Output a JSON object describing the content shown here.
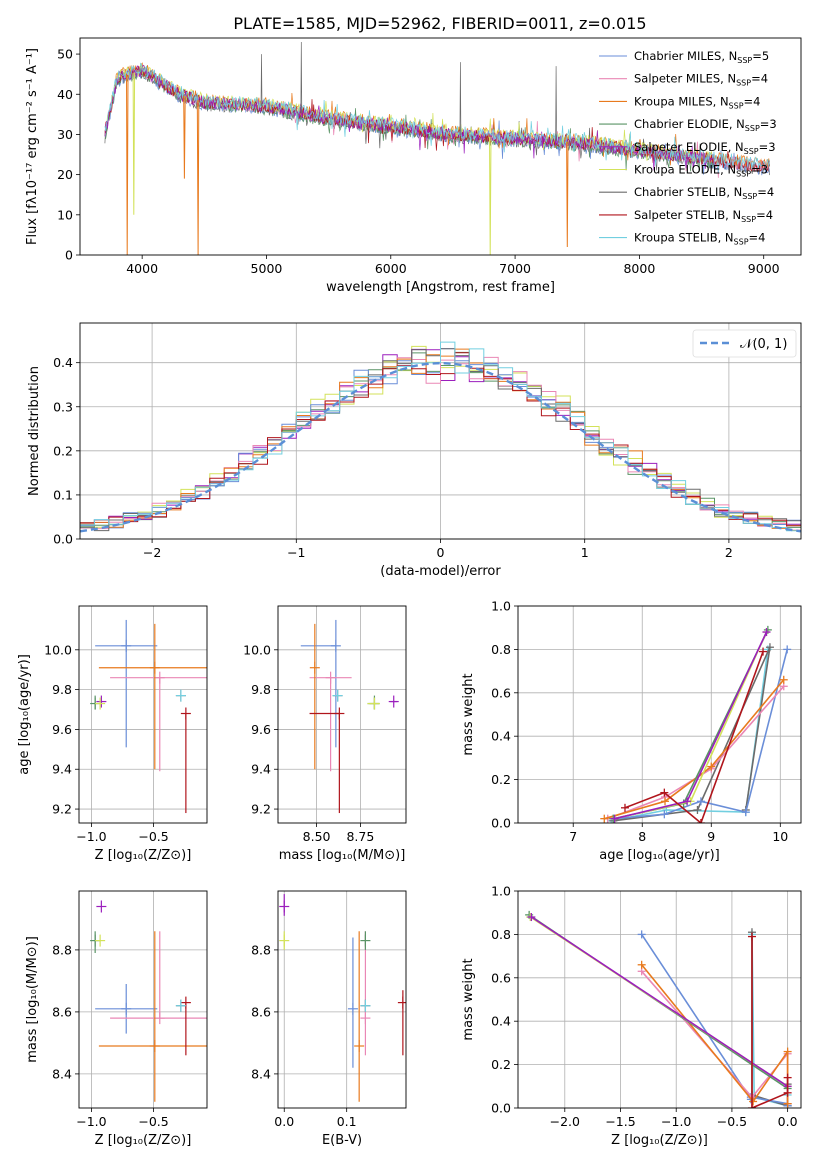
{
  "figure": {
    "title": "PLATE=1585, MJD=52962, FIBERID=0011, z=0.015"
  },
  "colors": {
    "chabrier_miles": "#6a8ed8",
    "salpeter_miles": "#ea87b5",
    "kroupa_miles": "#e87a1e",
    "chabrier_elodie": "#5a9466",
    "salpeter_elodie": "#9b1fbd",
    "kroupa_elodie": "#d3e25a",
    "chabrier_stelib": "#6b6b6b",
    "salpeter_stelib": "#b0151c",
    "kroupa_stelib": "#72cfe0"
  },
  "chart_data": [
    {
      "id": "spectrum",
      "type": "line",
      "xlabel": "wavelength [Angstrom, rest frame]",
      "ylabel": "Flux [fλ10⁻¹⁷ erg cm⁻² s⁻¹ A⁻¹]",
      "xlim": [
        3500,
        9300
      ],
      "ylim": [
        0,
        54
      ],
      "xticks": [
        "4000",
        "5000",
        "6000",
        "7000",
        "8000",
        "9000"
      ],
      "yticks": [
        "0",
        "10",
        "20",
        "30",
        "40",
        "50"
      ],
      "legend_placement": "upper-right",
      "continuum": {
        "x": [
          3700,
          3800,
          4000,
          4300,
          4500,
          5000,
          5500,
          6000,
          6500,
          7000,
          7500,
          8000,
          8500,
          9000
        ],
        "y": [
          30,
          44,
          46,
          40,
          38,
          37,
          34,
          32,
          30,
          29,
          28,
          26,
          24,
          22
        ]
      },
      "features": {
        "dips": [
          [
            3880,
            0
          ],
          [
            3933,
            10
          ],
          [
            4340,
            19
          ],
          [
            4450,
            0
          ],
          [
            6800,
            0
          ],
          [
            7420,
            2
          ]
        ],
        "spikes": [
          [
            4960,
            50
          ],
          [
            5280,
            53
          ],
          [
            6560,
            48
          ],
          [
            7330,
            47
          ]
        ]
      },
      "series": [
        {
          "name": "Chabrier MILES, N_SSP=5",
          "label": "Chabrier MILES, N",
          "sub": "SSP",
          "suffix": "=5",
          "color_key": "chabrier_miles"
        },
        {
          "name": "Salpeter MILES, N_SSP=4",
          "label": "Salpeter MILES, N",
          "sub": "SSP",
          "suffix": "=4",
          "color_key": "salpeter_miles"
        },
        {
          "name": "Kroupa MILES, N_SSP=4",
          "label": "Kroupa MILES, N",
          "sub": "SSP",
          "suffix": "=4",
          "color_key": "kroupa_miles"
        },
        {
          "name": "Chabrier ELODIE, N_SSP=3",
          "label": "Chabrier ELODIE, N",
          "sub": "SSP",
          "suffix": "=3",
          "color_key": "chabrier_elodie"
        },
        {
          "name": "Salpeter ELODIE, N_SSP=3",
          "label": "Salpeter ELODIE, N",
          "sub": "SSP",
          "suffix": "=3",
          "color_key": "salpeter_elodie"
        },
        {
          "name": "Kroupa ELODIE, N_SSP=3",
          "label": "Kroupa ELODIE, N",
          "sub": "SSP",
          "suffix": "=3",
          "color_key": "kroupa_elodie"
        },
        {
          "name": "Chabrier STELIB, N_SSP=4",
          "label": "Chabrier STELIB, N",
          "sub": "SSP",
          "suffix": "=4",
          "color_key": "chabrier_stelib"
        },
        {
          "name": "Salpeter STELIB, N_SSP=4",
          "label": "Salpeter STELIB, N",
          "sub": "SSP",
          "suffix": "=4",
          "color_key": "salpeter_stelib"
        },
        {
          "name": "Kroupa STELIB, N_SSP=4",
          "label": "Kroupa STELIB, N",
          "sub": "SSP",
          "suffix": "=4",
          "color_key": "kroupa_stelib"
        }
      ]
    },
    {
      "id": "residuals",
      "type": "line",
      "xlabel": "(data-model)/error",
      "ylabel": "Normed distribution",
      "xlim": [
        -2.5,
        2.5
      ],
      "ylim": [
        0,
        0.49
      ],
      "xticks": [
        "−2",
        "−1",
        "0",
        "1",
        "2"
      ],
      "yticks": [
        "0.0",
        "0.1",
        "0.2",
        "0.3",
        "0.4"
      ],
      "grid": true,
      "legend_placement": "upper-right",
      "reference_label": "𝒩(0, 1)",
      "reference_color": "#5b8fd6",
      "bin_width": 0.1
    },
    {
      "id": "age_vs_Z",
      "type": "scatter",
      "xlabel": "Z [log₁₀(Z/Z⊙)]",
      "ylabel": "age  [log₁₀(age/yr)]",
      "xlim": [
        -1.1,
        -0.07
      ],
      "ylim": [
        9.13,
        10.22
      ],
      "xticks": [
        "−1.0",
        "−0.5"
      ],
      "yticks": [
        "9.2",
        "9.4",
        "9.6",
        "9.8",
        "10.0"
      ],
      "grid": true
    },
    {
      "id": "age_vs_mass",
      "type": "scatter",
      "xlabel": "mass [log₁₀(M/M⊙)]",
      "xlim": [
        8.28,
        9.01
      ],
      "ylim": [
        9.13,
        10.22
      ],
      "xticks": [
        "8.50",
        "8.75"
      ],
      "yticks": [
        "9.2",
        "9.4",
        "9.6",
        "9.8",
        "10.0"
      ],
      "grid": true
    },
    {
      "id": "mass_weight_vs_age",
      "type": "line",
      "xlabel": "age  [log₁₀(age/yr)]",
      "ylabel": "mass weight",
      "xlim": [
        6.2,
        10.3
      ],
      "ylim": [
        0,
        1
      ],
      "xticks": [
        "7",
        "8",
        "9",
        "10"
      ],
      "yticks": [
        "0.0",
        "0.2",
        "0.4",
        "0.6",
        "0.8",
        "1.0"
      ],
      "grid": true
    },
    {
      "id": "mass_vs_Z",
      "type": "scatter",
      "xlabel": "Z [log₁₀(Z/Z⊙)]",
      "ylabel": "mass [log₁₀(M/M⊙)]",
      "xlim": [
        -1.1,
        -0.07
      ],
      "ylim": [
        8.29,
        8.99
      ],
      "xticks": [
        "−1.0",
        "−0.5"
      ],
      "yticks": [
        "8.4",
        "8.6",
        "8.8"
      ],
      "grid": true
    },
    {
      "id": "mass_vs_ebv",
      "type": "scatter",
      "xlabel": "E(B-V)",
      "xlim": [
        -0.01,
        0.195
      ],
      "ylim": [
        8.29,
        8.99
      ],
      "xticks": [
        "0.0",
        "0.1"
      ],
      "yticks": [
        "8.4",
        "8.6",
        "8.8"
      ],
      "grid": true
    },
    {
      "id": "mass_weight_vs_Z",
      "type": "line",
      "xlabel": "Z [log₁₀(Z/Z⊙)]",
      "ylabel": "mass weight",
      "xlim": [
        -2.42,
        0.12
      ],
      "ylim": [
        0,
        1
      ],
      "xticks": [
        "−2.0",
        "−1.5",
        "−1.0",
        "−0.5",
        "0.0"
      ],
      "yticks": [
        "0.0",
        "0.2",
        "0.4",
        "0.6",
        "0.8",
        "1.0"
      ],
      "grid": true
    }
  ],
  "models": [
    {
      "key": "chabrier_miles",
      "Z": -0.72,
      "Zerr": 0.25,
      "age": 10.02,
      "ageErr": [
        0.51,
        0.13
      ],
      "mass": 8.61,
      "massErr": [
        0.2,
        0.0
      ],
      "massZerr": [
        0.08,
        0.08
      ],
      "ebv": 0.11,
      "ebvErr": 0.0,
      "ebvMassErr": [
        0.19,
        0.23
      ],
      "wa": [
        [
          7.58,
          0.02
        ],
        [
          8.32,
          0.04
        ],
        [
          8.85,
          0.1
        ],
        [
          9.5,
          0.05
        ],
        [
          10.1,
          0.8
        ]
      ],
      "wz": [
        [
          -1.31,
          0.8
        ],
        [
          -0.33,
          0.04
        ],
        [
          -0.33,
          0.05
        ],
        [
          0.0,
          0.02
        ],
        [
          0.0,
          0.01
        ]
      ]
    },
    {
      "key": "salpeter_miles",
      "Z": -0.45,
      "Zerr": 0.4,
      "age": 9.86,
      "ageErr": [
        0.47,
        0.0
      ],
      "mass": 8.58,
      "massErr": [
        0.12,
        0.12
      ],
      "massZerr": [
        0.0,
        0.28
      ],
      "ebv": 0.13,
      "ebvErr": 0.0,
      "ebvMassErr": [
        0.12,
        0.28
      ],
      "wa": [
        [
          7.5,
          0.02
        ],
        [
          8.33,
          0.12
        ],
        [
          9.0,
          0.25
        ],
        [
          10.05,
          0.63
        ]
      ],
      "wz": [
        [
          -1.31,
          0.63
        ],
        [
          -0.32,
          0.05
        ],
        [
          0.0,
          0.25
        ],
        [
          0.0,
          0.02
        ]
      ]
    },
    {
      "key": "kroupa_miles",
      "Z": -0.49,
      "Zerr": 0.45,
      "age": 9.91,
      "ageErr": [
        0.51,
        0.22
      ],
      "mass": 8.49,
      "massErr": [
        0.0,
        0.0
      ],
      "massZerr": [
        0.18,
        0.37
      ],
      "ebv": 0.12,
      "ebvErr": 0.0,
      "ebvMassErr": [
        0.18,
        0.37
      ],
      "wa": [
        [
          7.45,
          0.02
        ],
        [
          8.33,
          0.1
        ],
        [
          9.0,
          0.26
        ],
        [
          10.05,
          0.66
        ]
      ],
      "wz": [
        [
          -1.31,
          0.66
        ],
        [
          -0.31,
          0.03
        ],
        [
          0.0,
          0.26
        ],
        [
          0.0,
          0.02
        ]
      ]
    },
    {
      "key": "chabrier_elodie",
      "Z": -0.97,
      "Zerr": 0.0,
      "age": 9.73,
      "ageErr": [
        0.03,
        0.04
      ],
      "mass": 8.83,
      "massErr": [
        0.04,
        0.03
      ],
      "massZerr": [
        0.04,
        0.03
      ],
      "ebv": 0.13,
      "ebvErr": 0.0,
      "ebvMassErr": [
        0.03,
        0.03
      ],
      "wa": [
        [
          7.58,
          0.02
        ],
        [
          8.6,
          0.09
        ],
        [
          9.82,
          0.89
        ]
      ],
      "wz": [
        [
          -2.32,
          0.89
        ],
        [
          0.0,
          0.09
        ]
      ]
    },
    {
      "key": "salpeter_elodie",
      "Z": -0.92,
      "Zerr": 0.0,
      "age": 9.74,
      "ageErr": [
        0.0,
        0.0
      ],
      "mass": 8.94,
      "massErr": [
        0.02,
        0.02
      ],
      "massZerr": [
        0.0,
        0.0
      ],
      "ebv": 0.0,
      "ebvErr": 0.0,
      "ebvMassErr": [
        0.03,
        0.04
      ],
      "wa": [
        [
          7.6,
          0.02
        ],
        [
          8.65,
          0.1
        ],
        [
          9.8,
          0.88
        ]
      ],
      "wz": [
        [
          -2.3,
          0.88
        ],
        [
          0.0,
          0.1
        ]
      ]
    },
    {
      "key": "kroupa_elodie",
      "Z": -0.93,
      "Zerr": 0.0,
      "age": 9.73,
      "ageErr": [
        0.0,
        0.0
      ],
      "mass": 8.83,
      "massErr": [
        0.04,
        0.03
      ],
      "massZerr": [
        0.0,
        0.0
      ],
      "ebv": 0.0,
      "ebvErr": 0.0,
      "ebvMassErr": [
        0.03,
        0.03
      ],
      "wa": [
        [
          7.6,
          0.02
        ],
        [
          8.7,
          0.1
        ],
        [
          9.8,
          0.88
        ]
      ],
      "wz": [
        [
          -2.31,
          0.88
        ],
        [
          0.0,
          0.1
        ]
      ]
    },
    {
      "key": "chabrier_stelib",
      "Z": -0.28,
      "Zerr": 0.0,
      "age": 9.77,
      "ageErr": [
        0.0,
        0.0
      ],
      "mass": 8.62,
      "massErr": [
        0.0,
        0.0
      ],
      "massZerr": [
        0.0,
        0.0
      ],
      "ebv": 0.13,
      "ebvErr": 0.0,
      "ebvMassErr": [
        0.0,
        0.0
      ],
      "wa": [
        [
          7.58,
          0.01
        ],
        [
          8.8,
          0.06
        ],
        [
          9.85,
          0.81
        ],
        [
          9.5,
          0.06
        ]
      ],
      "wz": [
        [
          -0.32,
          0.81
        ],
        [
          -0.32,
          0.06
        ],
        [
          0.0,
          0.01
        ],
        [
          0.0,
          0.11
        ]
      ]
    },
    {
      "key": "salpeter_stelib",
      "Z": -0.24,
      "Zerr": 0.0,
      "age": 9.68,
      "ageErr": [
        0.5,
        0.0
      ],
      "mass": 8.63,
      "massErr": [
        0.17,
        0.0
      ],
      "massZerr": [
        0.17,
        0.0
      ],
      "ebv": 0.19,
      "ebvErr": 0.0,
      "ebvMassErr": [
        0.17,
        0.04
      ],
      "wa": [
        [
          7.75,
          0.07
        ],
        [
          8.32,
          0.14
        ],
        [
          8.85,
          0.0
        ],
        [
          9.75,
          0.79
        ]
      ],
      "wz": [
        [
          -0.32,
          0.79
        ],
        [
          -0.32,
          0.0
        ],
        [
          0.0,
          0.07
        ],
        [
          0.0,
          0.14
        ]
      ]
    },
    {
      "key": "kroupa_stelib",
      "Z": -0.28,
      "Zerr": 0.0,
      "age": 9.77,
      "ageErr": [
        0.0,
        0.0
      ],
      "mass": 8.62,
      "massErr": [
        0.0,
        0.0
      ],
      "massZerr": [
        0.0,
        0.0
      ],
      "ebv": 0.13,
      "ebvErr": 0.0,
      "ebvMassErr": [
        0.0,
        0.0
      ],
      "wa": [
        [
          7.55,
          0.01
        ],
        [
          8.35,
          0.06
        ],
        [
          9.5,
          0.05
        ],
        [
          9.82,
          0.8
        ]
      ],
      "wz": [
        [
          -0.32,
          0.8
        ],
        [
          -0.3,
          0.05
        ],
        [
          0.0,
          0.01
        ],
        [
          0.0,
          0.06
        ]
      ]
    }
  ]
}
